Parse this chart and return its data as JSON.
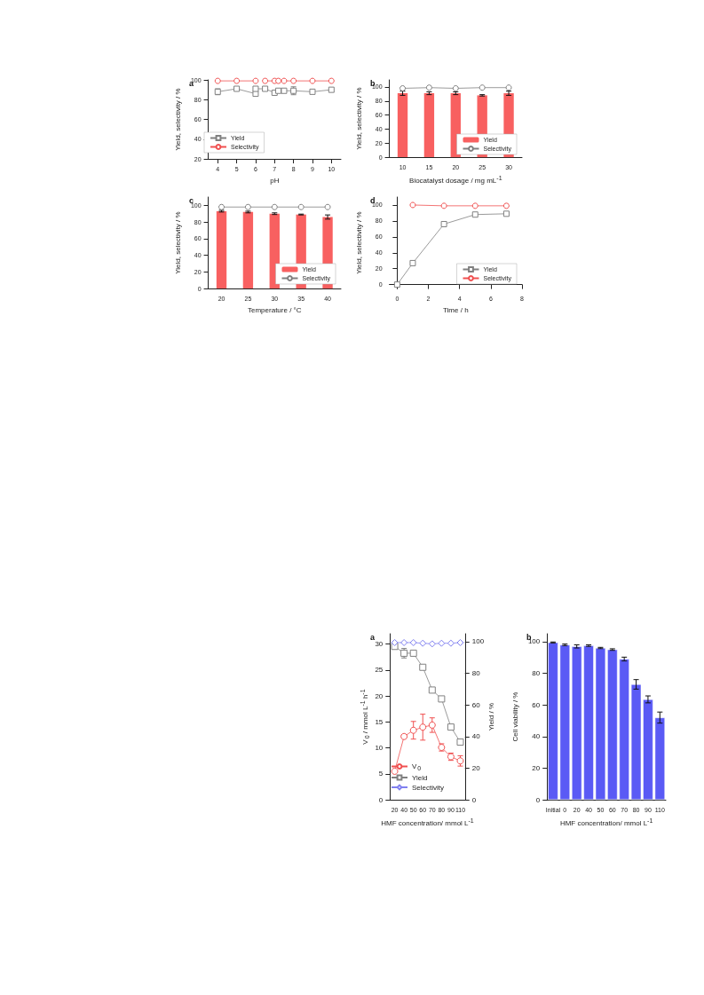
{
  "chart_data": [
    {
      "type": "line",
      "title": "a",
      "xlabel": "pH",
      "ylabel": "Yield, selectivity / %",
      "x": [
        4,
        5,
        6,
        6,
        6.5,
        7,
        7.2,
        7.5,
        8,
        9,
        10
      ],
      "xlim": [
        3.5,
        10.5
      ],
      "xticks": [
        4,
        5,
        6,
        7,
        8,
        9,
        10
      ],
      "ylim": [
        20,
        100
      ],
      "yticks": [
        20,
        40,
        60,
        80,
        100
      ],
      "legend": "bottom left",
      "grid": false,
      "series": [
        {
          "name": "Yield",
          "color": "#808080",
          "marker": "square",
          "values": [
            88,
            91,
            86,
            91,
            91,
            87,
            89,
            89,
            89,
            88,
            90
          ],
          "errors": [
            3,
            null,
            null,
            null,
            null,
            null,
            null,
            null,
            4,
            null,
            null
          ]
        },
        {
          "name": "Selectivity",
          "color": "#f05050",
          "marker": "circle",
          "values": [
            99,
            99,
            99,
            null,
            99,
            99,
            99,
            99,
            99,
            99,
            99
          ]
        }
      ]
    },
    {
      "type": "bar",
      "title": "b",
      "xlabel": "Biocatalyst dosage / mg mL$^{-1}$",
      "ylabel": "Yield, selectivity / %",
      "categories": [
        "10",
        "15",
        "20",
        "25",
        "30"
      ],
      "ylim": [
        0,
        110
      ],
      "yticks": [
        0,
        20,
        40,
        60,
        80,
        100
      ],
      "legend": "bottom right",
      "grid": false,
      "series": [
        {
          "name": "Yield",
          "color": "#f86060",
          "values": [
            91,
            91,
            91,
            88,
            91
          ],
          "errors": [
            3,
            2,
            2,
            1,
            3
          ]
        },
        {
          "name": "Selectivity",
          "type": "line",
          "color": "#808080",
          "marker": "circle",
          "values": [
            98,
            99,
            98,
            99,
            99
          ]
        }
      ]
    },
    {
      "type": "bar",
      "title": "c",
      "xlabel": "Temperature / °C",
      "ylabel": "Yield, selectivity / %",
      "categories": [
        "20",
        "25",
        "30",
        "35",
        "40"
      ],
      "ylim": [
        0,
        110
      ],
      "yticks": [
        0,
        20,
        40,
        60,
        80,
        100
      ],
      "legend": "bottom right",
      "grid": false,
      "series": [
        {
          "name": "Yield",
          "color": "#f86060",
          "values": [
            93,
            92,
            90,
            89,
            86
          ],
          "errors": [
            1,
            1,
            1,
            0.5,
            2.5
          ]
        },
        {
          "name": "Selectivity",
          "type": "line",
          "color": "#808080",
          "marker": "circle",
          "values": [
            98,
            98,
            98,
            98,
            98
          ]
        }
      ]
    },
    {
      "type": "line",
      "title": "d",
      "xlabel": "Time / h",
      "ylabel": "Yield, selectivity / %",
      "xlim": [
        -0.5,
        8
      ],
      "xticks": [
        0,
        2,
        4,
        6,
        8
      ],
      "ylim": [
        -5,
        110
      ],
      "yticks": [
        0,
        20,
        40,
        60,
        80,
        100
      ],
      "legend": "bottom right",
      "grid": false,
      "series": [
        {
          "name": "Yield",
          "color": "#808080",
          "marker": "square",
          "x": [
            0,
            1,
            3,
            5,
            7
          ],
          "values": [
            0,
            27,
            76,
            88,
            89
          ]
        },
        {
          "name": "Selectivity",
          "color": "#f05050",
          "marker": "circle",
          "x": [
            1,
            3,
            5,
            7
          ],
          "values": [
            100,
            99,
            99,
            99
          ]
        }
      ]
    },
    {
      "type": "line",
      "title": "a",
      "xlabel": "HMF concentration/ mmol L$^{-1}$",
      "ylabel": "V$_{0}$ / mmol L$^{-1}$ h$^{-1}$",
      "y2label": "Yield / %",
      "categories": [
        "20",
        "40",
        "50",
        "60",
        "70",
        "80",
        "90",
        "110"
      ],
      "ylim": [
        0,
        32
      ],
      "yticks": [
        0,
        5,
        10,
        15,
        20,
        25,
        30
      ],
      "y2lim": [
        0,
        105
      ],
      "y2ticks": [
        0,
        20,
        40,
        60,
        80,
        100
      ],
      "legend": "bottom left",
      "grid": false,
      "series": [
        {
          "name": "V$_{0}$",
          "color": "#f05050",
          "marker": "circle",
          "values": [
            5.5,
            12.2,
            13.4,
            14,
            14.4,
            10.1,
            8.3,
            7.5
          ],
          "errors": [
            null,
            0.3,
            1.7,
            2.5,
            1.4,
            0.7,
            0.7,
            1
          ]
        },
        {
          "name": "Yield",
          "color": "#808080",
          "marker": "square",
          "axis": "y2",
          "values": [
            97,
            92.7,
            92.7,
            83.8,
            69.4,
            63.8,
            46,
            36.5
          ],
          "errors": [
            null,
            3,
            null,
            null,
            null,
            null,
            1.5,
            null
          ]
        },
        {
          "name": "Selectivity",
          "color": "#8080f0",
          "marker": "diamond",
          "axis": "y2",
          "values": [
            99.4,
            99.4,
            99.4,
            99,
            98.6,
            99,
            99,
            99.4
          ]
        }
      ]
    },
    {
      "type": "bar",
      "title": "b",
      "xlabel": "HMF concentration/ mmol L$^{-1}$",
      "ylabel": "Cell viability / %",
      "categories": [
        "Initial",
        "0",
        "20",
        "40",
        "50",
        "60",
        "70",
        "80",
        "90",
        "110"
      ],
      "ylim": [
        0,
        105
      ],
      "yticks": [
        0,
        20,
        40,
        60,
        80,
        100
      ],
      "grid": false,
      "series": [
        {
          "color": "#5a5af5",
          "values": [
            99.5,
            98,
            97,
            97.5,
            96,
            95,
            89,
            73,
            63.5,
            52
          ],
          "errors": [
            0.3,
            0.5,
            1,
            0.5,
            0.4,
            0.5,
            1.2,
            3,
            2.2,
            3.5
          ]
        }
      ]
    }
  ]
}
